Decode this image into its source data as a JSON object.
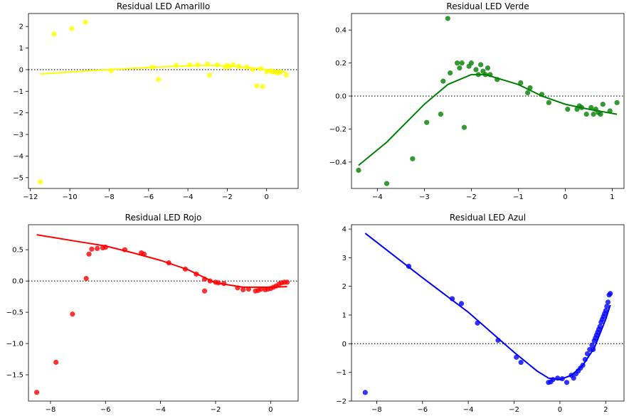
{
  "chart_data": [
    {
      "type": "scatter",
      "title": "Residual LED Amarillo",
      "color": "#ffff00",
      "xlim": [
        -12.1,
        1.6
      ],
      "ylim": [
        -5.5,
        2.6
      ],
      "xticks": [
        -12,
        -10,
        -8,
        -6,
        -4,
        -2,
        0
      ],
      "yticks": [
        2,
        1,
        0,
        -1,
        -2,
        -3,
        -4,
        -5
      ],
      "grid": false,
      "reference_line": 0,
      "points": {
        "x": [
          -11.5,
          -10.8,
          -9.9,
          -9.2,
          -7.9,
          -5.8,
          -5.5,
          -4.6,
          -3.9,
          -3.5,
          -3.0,
          -2.9,
          -2.5,
          -2.1,
          -2.0,
          -1.9,
          -1.7,
          -1.4,
          -1.0,
          -0.7,
          -0.5,
          -0.3,
          -0.2,
          0.0,
          0.2,
          0.3,
          0.4,
          0.5,
          0.6,
          0.7,
          1.0
        ],
        "y": [
          -5.2,
          1.65,
          1.9,
          2.2,
          -0.05,
          0.12,
          -0.45,
          0.2,
          0.22,
          0.22,
          0.25,
          -0.25,
          0.22,
          0.12,
          0.2,
          0.15,
          0.22,
          0.15,
          0.12,
          0.0,
          -0.75,
          0.05,
          -0.78,
          -0.1,
          -0.05,
          -0.1,
          -0.1,
          -0.12,
          -0.15,
          -0.1,
          -0.25
        ]
      },
      "fit": {
        "x": [
          -11.5,
          -9,
          -6,
          -4,
          -3,
          -2,
          -1,
          0,
          0.5,
          1.0
        ],
        "y": [
          -0.2,
          -0.05,
          0.1,
          0.18,
          0.2,
          0.18,
          0.1,
          0.0,
          -0.05,
          -0.1
        ]
      }
    },
    {
      "type": "scatter",
      "title": "Residual LED Verde",
      "color": "#008000",
      "xlim": [
        -4.55,
        1.25
      ],
      "ylim": [
        -0.56,
        0.5
      ],
      "xticks": [
        -4,
        -3,
        -2,
        -1,
        0,
        1
      ],
      "yticks": [
        0.4,
        0.2,
        0.0,
        -0.2,
        -0.4
      ],
      "grid": false,
      "reference_line": 0,
      "points": {
        "x": [
          -4.4,
          -3.8,
          -3.25,
          -2.95,
          -2.65,
          -2.6,
          -2.5,
          -2.45,
          -2.3,
          -2.25,
          -2.2,
          -2.15,
          -2.05,
          -2.0,
          -1.9,
          -1.85,
          -1.8,
          -1.75,
          -1.7,
          -1.65,
          -1.6,
          -1.45,
          -0.95,
          -0.8,
          -0.75,
          -0.5,
          -0.35,
          0.05,
          0.25,
          0.3,
          0.35,
          0.45,
          0.55,
          0.6,
          0.65,
          0.7,
          0.75,
          0.8,
          0.95,
          1.1
        ],
        "y": [
          -0.45,
          -0.53,
          -0.38,
          -0.16,
          -0.11,
          0.09,
          0.47,
          0.14,
          0.2,
          0.17,
          0.2,
          -0.19,
          0.18,
          0.2,
          0.16,
          0.13,
          0.19,
          0.15,
          0.13,
          0.17,
          0.13,
          0.1,
          0.08,
          0.02,
          0.05,
          0.01,
          -0.04,
          -0.08,
          -0.08,
          -0.06,
          -0.07,
          -0.11,
          -0.07,
          -0.11,
          -0.08,
          -0.1,
          -0.11,
          -0.05,
          -0.09,
          -0.04
        ]
      },
      "fit": {
        "x": [
          -4.4,
          -3.8,
          -3.0,
          -2.5,
          -2.0,
          -1.7,
          -1.0,
          -0.5,
          0.0,
          0.5,
          1.1
        ],
        "y": [
          -0.42,
          -0.28,
          -0.05,
          0.07,
          0.13,
          0.13,
          0.07,
          0.0,
          -0.05,
          -0.08,
          -0.11
        ]
      }
    },
    {
      "type": "scatter",
      "title": "Residual LED Rojo",
      "color": "#ff0000",
      "xlim": [
        -8.8,
        1.0
      ],
      "ylim": [
        -1.92,
        0.9
      ],
      "xticks": [
        -8,
        -6,
        -4,
        -2,
        0
      ],
      "yticks": [
        0.5,
        0.0,
        -0.5,
        -1.0,
        -1.5
      ],
      "grid": false,
      "reference_line": 0,
      "points": {
        "x": [
          -8.5,
          -7.8,
          -7.2,
          -6.7,
          -6.6,
          -6.5,
          -6.3,
          -6.1,
          -6.0,
          -5.3,
          -4.7,
          -4.6,
          -3.7,
          -3.1,
          -2.7,
          -2.4,
          -2.4,
          -2.2,
          -2.0,
          -1.9,
          -1.7,
          -1.2,
          -1.0,
          -0.8,
          -0.55,
          -0.45,
          -0.35,
          -0.2,
          -0.1,
          0.0,
          0.1,
          0.2,
          0.3,
          0.4,
          0.5,
          0.6
        ],
        "y": [
          -1.78,
          -1.3,
          -0.53,
          0.04,
          0.43,
          0.51,
          0.52,
          0.53,
          0.54,
          0.5,
          0.45,
          0.43,
          0.29,
          0.19,
          0.11,
          0.03,
          -0.16,
          0.0,
          -0.02,
          -0.03,
          -0.04,
          -0.11,
          -0.14,
          -0.13,
          -0.16,
          -0.15,
          -0.13,
          -0.14,
          -0.13,
          -0.12,
          -0.1,
          -0.08,
          -0.05,
          -0.03,
          -0.02,
          -0.02
        ]
      },
      "fit": {
        "x": [
          -8.5,
          -7.0,
          -6.0,
          -5.0,
          -4.0,
          -3.0,
          -2.0,
          -1.0,
          0.0,
          0.6
        ],
        "y": [
          0.74,
          0.63,
          0.56,
          0.45,
          0.33,
          0.18,
          -0.03,
          -0.1,
          -0.1,
          -0.09
        ]
      }
    },
    {
      "type": "scatter",
      "title": "Residual LED Azul",
      "color": "#0000ff",
      "xlim": [
        -9.1,
        2.8
      ],
      "ylim": [
        -2.0,
        4.15
      ],
      "xticks": [
        -8,
        -6,
        -4,
        -2,
        0,
        2
      ],
      "yticks": [
        4,
        3,
        2,
        1,
        0,
        -1,
        -2
      ],
      "grid": false,
      "reference_line": 0,
      "points": {
        "x": [
          -8.5,
          -6.6,
          -4.7,
          -4.3,
          -3.6,
          -2.7,
          -1.9,
          -1.7,
          -0.5,
          -0.4,
          -0.3,
          -0.1,
          0.1,
          0.3,
          0.5,
          0.6,
          0.7,
          0.8,
          0.9,
          1.0,
          1.1,
          1.2,
          1.3,
          1.4,
          1.45,
          1.5,
          1.55,
          1.6,
          1.65,
          1.7,
          1.75,
          1.8,
          1.85,
          1.9,
          1.95,
          2.0,
          2.05,
          2.1,
          2.15,
          2.2
        ],
        "y": [
          -1.7,
          2.7,
          1.57,
          1.4,
          0.72,
          0.12,
          -0.47,
          -0.65,
          -1.35,
          -1.33,
          -1.25,
          -1.2,
          -1.22,
          -1.35,
          -1.1,
          -1.2,
          -1.05,
          -0.95,
          -0.85,
          -0.75,
          -0.55,
          -0.35,
          -0.2,
          -0.05,
          -0.2,
          0.1,
          0.2,
          0.3,
          0.4,
          0.5,
          0.6,
          0.75,
          0.85,
          0.95,
          1.05,
          1.15,
          1.3,
          1.45,
          1.7,
          1.75
        ]
      },
      "fit": {
        "x": [
          -8.5,
          -6.0,
          -4.0,
          -2.0,
          -1.0,
          -0.5,
          0.0,
          0.5,
          1.0,
          1.5,
          2.0,
          2.2
        ],
        "y": [
          3.85,
          2.3,
          1.1,
          -0.3,
          -0.95,
          -1.2,
          -1.25,
          -1.1,
          -0.75,
          -0.15,
          0.85,
          1.35
        ]
      }
    }
  ]
}
